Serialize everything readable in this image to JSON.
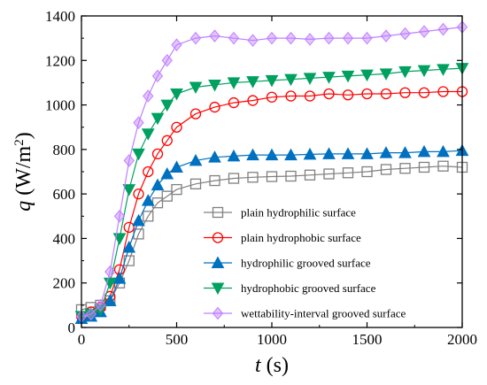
{
  "chart_data": {
    "type": "line",
    "xlabel_symbol": "t",
    "xlabel_unit": " (s)",
    "ylabel_symbol": "q",
    "ylabel_unit": " (W/m",
    "ylabel_sup": "2",
    "ylabel_close": ")",
    "xlim": [
      0,
      2000
    ],
    "ylim": [
      0,
      1400
    ],
    "xticks": [
      0,
      500,
      1000,
      1500,
      2000
    ],
    "yticks": [
      0,
      200,
      400,
      600,
      800,
      1000,
      1200,
      1400
    ],
    "grid": false,
    "legend_position": "bottom-right",
    "series": [
      {
        "name": "plain hydrophilic surface",
        "color": "#808080",
        "marker": "square",
        "x": [
          0,
          50,
          100,
          150,
          200,
          250,
          300,
          350,
          400,
          450,
          500,
          600,
          700,
          800,
          900,
          1000,
          1100,
          1200,
          1300,
          1400,
          1500,
          1600,
          1700,
          1800,
          1900,
          2000
        ],
        "y": [
          80,
          90,
          100,
          120,
          200,
          300,
          420,
          500,
          560,
          590,
          620,
          645,
          660,
          670,
          675,
          678,
          680,
          685,
          690,
          695,
          700,
          710,
          715,
          720,
          725,
          720
        ]
      },
      {
        "name": "plain hydrophobic surface",
        "color": "#ff0000",
        "marker": "circle",
        "x": [
          0,
          50,
          100,
          150,
          200,
          250,
          300,
          350,
          400,
          450,
          500,
          600,
          700,
          800,
          900,
          1000,
          1100,
          1200,
          1300,
          1400,
          1500,
          1600,
          1700,
          1800,
          1900,
          2000
        ],
        "y": [
          50,
          70,
          90,
          140,
          260,
          450,
          600,
          700,
          780,
          840,
          900,
          960,
          990,
          1010,
          1020,
          1035,
          1040,
          1040,
          1050,
          1045,
          1050,
          1050,
          1055,
          1055,
          1060,
          1060
        ]
      },
      {
        "name": "hydrophilic grooved surface",
        "color": "#0070c0",
        "marker": "triangle-up",
        "x": [
          0,
          50,
          100,
          150,
          200,
          250,
          300,
          350,
          400,
          450,
          500,
          600,
          700,
          800,
          900,
          1000,
          1100,
          1200,
          1300,
          1400,
          1500,
          1600,
          1700,
          1800,
          1900,
          2000
        ],
        "y": [
          40,
          50,
          70,
          120,
          220,
          360,
          480,
          570,
          640,
          690,
          720,
          750,
          765,
          770,
          775,
          775,
          775,
          778,
          780,
          780,
          780,
          785,
          785,
          790,
          790,
          795
        ]
      },
      {
        "name": "hydrophobic grooved surface",
        "color": "#00a060",
        "marker": "triangle-down",
        "x": [
          0,
          50,
          100,
          150,
          200,
          250,
          300,
          350,
          400,
          450,
          500,
          600,
          700,
          800,
          900,
          1000,
          1100,
          1200,
          1300,
          1400,
          1500,
          1600,
          1700,
          1800,
          1900,
          2000
        ],
        "y": [
          50,
          60,
          80,
          200,
          400,
          620,
          780,
          870,
          940,
          1000,
          1050,
          1080,
          1090,
          1100,
          1105,
          1110,
          1115,
          1120,
          1125,
          1130,
          1135,
          1140,
          1150,
          1155,
          1160,
          1165
        ]
      },
      {
        "name": "wettability-interval grooved surface",
        "color": "#bf7fff",
        "marker": "diamond",
        "x": [
          0,
          50,
          100,
          150,
          200,
          250,
          300,
          350,
          400,
          450,
          500,
          600,
          700,
          800,
          900,
          1000,
          1100,
          1200,
          1300,
          1400,
          1500,
          1600,
          1700,
          1800,
          1900,
          2000
        ],
        "y": [
          50,
          60,
          100,
          250,
          500,
          750,
          920,
          1040,
          1130,
          1200,
          1270,
          1300,
          1310,
          1300,
          1290,
          1300,
          1300,
          1295,
          1300,
          1300,
          1300,
          1310,
          1320,
          1330,
          1340,
          1350
        ]
      }
    ]
  }
}
